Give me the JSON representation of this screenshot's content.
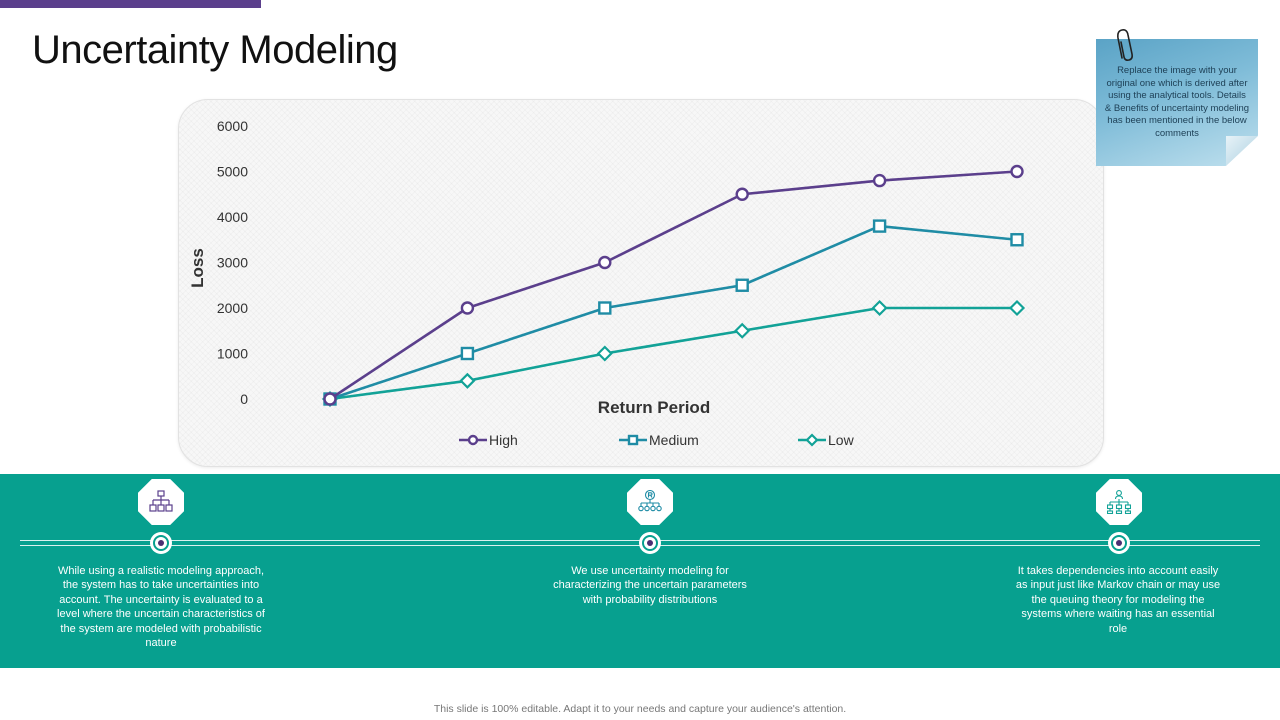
{
  "title": "Uncertainty Modeling",
  "note": "Replace the image with your original one which is derived after using the analytical tools. Details & Benefits of uncertainty modeling has been mentioned in the below comments",
  "chart_data": {
    "type": "line",
    "x": [
      1,
      2,
      3,
      4,
      5,
      6
    ],
    "series": [
      {
        "name": "High",
        "values": [
          0,
          2000,
          3000,
          4500,
          4800,
          5000
        ],
        "color": "#5b3f8c",
        "marker": "circle"
      },
      {
        "name": "Medium",
        "values": [
          0,
          1000,
          2000,
          2500,
          3800,
          3500
        ],
        "color": "#1f8ca5",
        "marker": "square"
      },
      {
        "name": "Low",
        "values": [
          0,
          400,
          1000,
          1500,
          2000,
          2000
        ],
        "color": "#12a297",
        "marker": "diamond"
      }
    ],
    "xlabel": "Return Period",
    "ylabel": "Loss",
    "ylim": [
      0,
      6000
    ],
    "yticks": [
      "0",
      "1000",
      "2000",
      "3000",
      "4000",
      "5000",
      "6000"
    ],
    "grid": false,
    "legend_position": "bottom"
  },
  "points": [
    {
      "icon": "org-chart-icon",
      "text": "While using a realistic modeling approach, the system has to take uncertainties into account. The uncertainty is evaluated to a level where the uncertain characteristics of the system are modeled with probabilistic  nature"
    },
    {
      "icon": "registered-hierarchy-icon",
      "text": "We use uncertainty modeling for characterizing the uncertain parameters with probability distributions"
    },
    {
      "icon": "network-hierarchy-icon",
      "text": "It takes dependencies into account easily as input just like Markov chain or may use the queuing theory for modeling the systems where waiting has an essential role"
    }
  ],
  "footer": "This slide is 100% editable. Adapt it to your needs and capture your audience's attention.",
  "colors": {
    "accent": "#5b3f8c",
    "band": "#07a08f"
  }
}
